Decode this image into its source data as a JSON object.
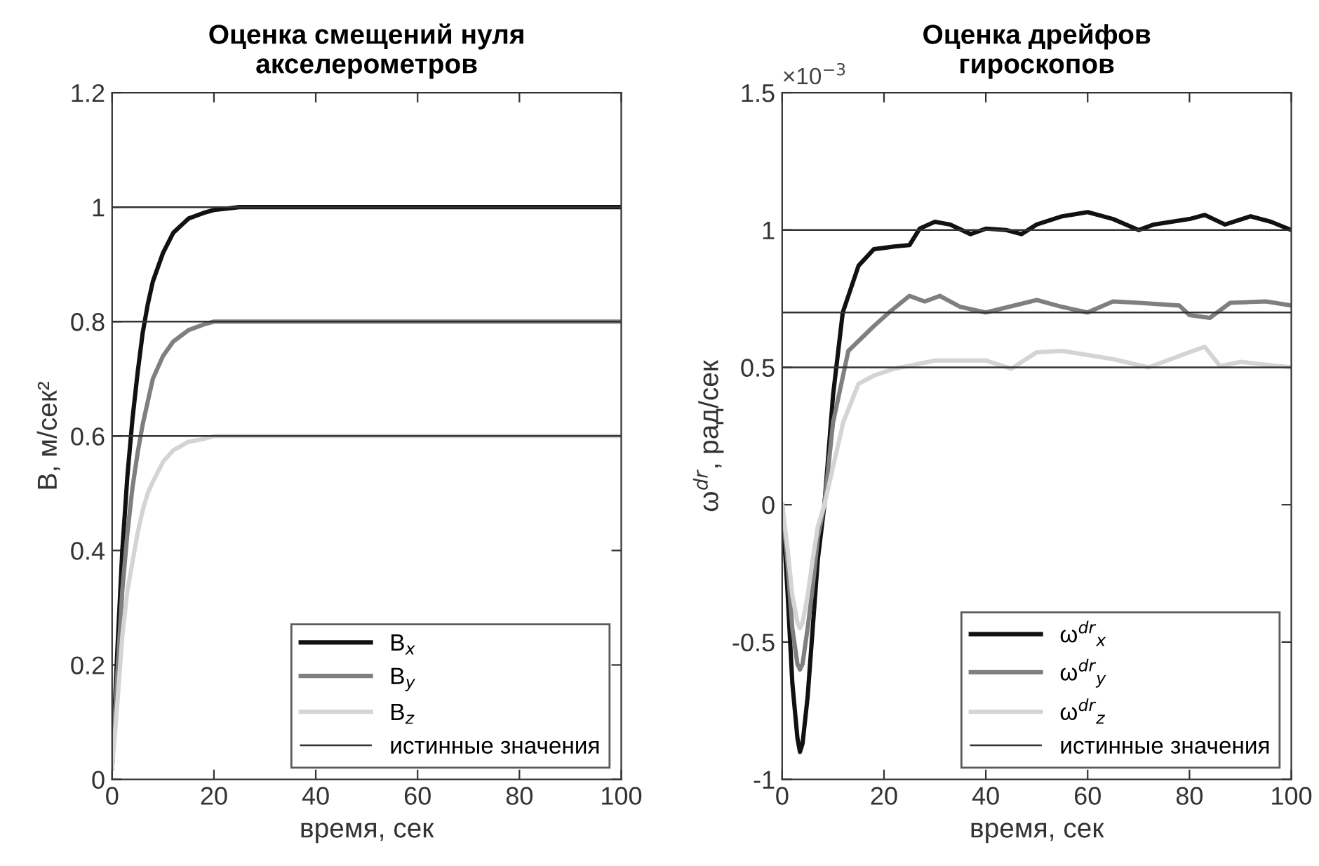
{
  "chart_data": [
    {
      "type": "line",
      "title": "Оценка смещений нуля\nакселерометров",
      "xlabel": "время, сек",
      "ylabel": "B, м/сек²",
      "xlim": [
        0,
        100
      ],
      "xticks": [
        0,
        20,
        40,
        60,
        80,
        100
      ],
      "ylim": [
        0,
        1.2
      ],
      "yticks": [
        0,
        0.2,
        0.4,
        0.6,
        0.8,
        1,
        1.2
      ],
      "grid": false,
      "legend": "bottom right",
      "line_style": "solid",
      "marker": "none",
      "x": [
        0,
        1,
        2,
        3,
        4,
        5,
        6,
        7,
        8,
        10,
        12,
        15,
        18,
        20,
        25,
        30,
        40,
        60,
        80,
        100
      ],
      "series": [
        {
          "name": "B$_{x}$",
          "color": "#111111",
          "values": [
            0.02,
            0.22,
            0.4,
            0.53,
            0.63,
            0.71,
            0.78,
            0.83,
            0.87,
            0.92,
            0.955,
            0.98,
            0.99,
            0.995,
            1.0,
            1.0,
            1.0,
            1.0,
            1.0,
            1.0
          ]
        },
        {
          "name": "B$_{y}$",
          "color": "#7f7f7f",
          "values": [
            0.02,
            0.18,
            0.33,
            0.43,
            0.51,
            0.57,
            0.62,
            0.66,
            0.7,
            0.74,
            0.765,
            0.785,
            0.795,
            0.8,
            0.8,
            0.8,
            0.8,
            0.8,
            0.8,
            0.8
          ]
        },
        {
          "name": "B$_{z}$",
          "color": "#d4d4d4",
          "values": [
            0.02,
            0.13,
            0.25,
            0.33,
            0.38,
            0.43,
            0.47,
            0.5,
            0.52,
            0.555,
            0.575,
            0.59,
            0.595,
            0.6,
            0.6,
            0.6,
            0.6,
            0.6,
            0.6,
            0.6
          ]
        }
      ],
      "ref_lines": [
        {
          "axis": "y",
          "value": 1,
          "label": "истинные значения",
          "color": "#333333"
        },
        {
          "axis": "y",
          "value": 0.8,
          "color": "#333333"
        },
        {
          "axis": "y",
          "value": 0.6,
          "color": "#333333"
        }
      ]
    },
    {
      "type": "line",
      "title": "Оценка дрейфов\nгироскопов",
      "xlabel": "время, сек",
      "ylabel": "ω$^{dr}$, рад/сек",
      "annotations": [
        "×10$^{−3}$"
      ],
      "xlim": [
        0,
        100
      ],
      "xticks": [
        0,
        20,
        40,
        60,
        80,
        100
      ],
      "ylim": [
        -1,
        1.5
      ],
      "yticks": [
        -1,
        -0.5,
        0,
        0.5,
        1,
        1.5
      ],
      "grid": false,
      "legend": "bottom right",
      "line_style": "solid",
      "marker": "none",
      "series": [
        {
          "name": "ω$^{dr}$$_{x}$",
          "color": "#111111",
          "x": [
            0,
            1,
            2,
            3,
            3.5,
            4,
            5,
            6,
            7,
            8.3,
            10,
            11.9,
            15,
            18,
            22,
            25,
            27,
            30,
            33,
            37,
            40,
            44,
            47,
            50,
            55,
            60,
            65,
            70,
            73,
            80,
            83,
            87,
            92,
            96,
            100
          ],
          "values": [
            0,
            -0.3,
            -0.65,
            -0.85,
            -0.9,
            -0.87,
            -0.7,
            -0.45,
            -0.2,
            0,
            0.4,
            0.7,
            0.87,
            0.93,
            0.94,
            0.945,
            1.005,
            1.03,
            1.02,
            0.985,
            1.005,
            1.0,
            0.985,
            1.02,
            1.05,
            1.065,
            1.04,
            1.0,
            1.02,
            1.04,
            1.055,
            1.02,
            1.05,
            1.03,
            1.0
          ]
        },
        {
          "name": "ω$^{dr}$$_{y}$",
          "color": "#7f7f7f",
          "x": [
            0,
            1,
            2,
            3,
            3.5,
            4,
            5,
            6,
            7,
            8.3,
            10,
            13,
            18,
            21,
            25,
            28,
            31,
            35,
            40,
            50,
            55,
            60,
            65,
            70,
            78,
            80,
            84,
            88,
            95,
            100
          ],
          "values": [
            0,
            -0.2,
            -0.45,
            -0.58,
            -0.6,
            -0.58,
            -0.45,
            -0.3,
            -0.12,
            0,
            0.3,
            0.56,
            0.65,
            0.7,
            0.76,
            0.74,
            0.76,
            0.72,
            0.7,
            0.745,
            0.72,
            0.7,
            0.74,
            0.735,
            0.725,
            0.69,
            0.68,
            0.735,
            0.74,
            0.725
          ]
        },
        {
          "name": "ω$^{dr}$$_{z}$",
          "color": "#d4d4d4",
          "x": [
            0,
            1,
            2,
            3,
            3.5,
            4,
            5,
            6,
            7,
            8.3,
            12,
            15,
            18,
            22,
            30,
            40,
            45,
            50,
            55,
            65,
            72,
            80,
            83,
            86,
            90,
            100
          ],
          "values": [
            0,
            -0.15,
            -0.33,
            -0.43,
            -0.45,
            -0.43,
            -0.33,
            -0.2,
            -0.08,
            0,
            0.3,
            0.44,
            0.47,
            0.495,
            0.525,
            0.525,
            0.495,
            0.555,
            0.56,
            0.53,
            0.5,
            0.555,
            0.575,
            0.505,
            0.52,
            0.5
          ]
        }
      ],
      "ref_lines": [
        {
          "axis": "y",
          "value": 1,
          "label": "истинные значения",
          "color": "#333333"
        },
        {
          "axis": "y",
          "value": 0.7,
          "color": "#333333"
        },
        {
          "axis": "y",
          "value": 0.5,
          "color": "#333333"
        }
      ]
    }
  ]
}
